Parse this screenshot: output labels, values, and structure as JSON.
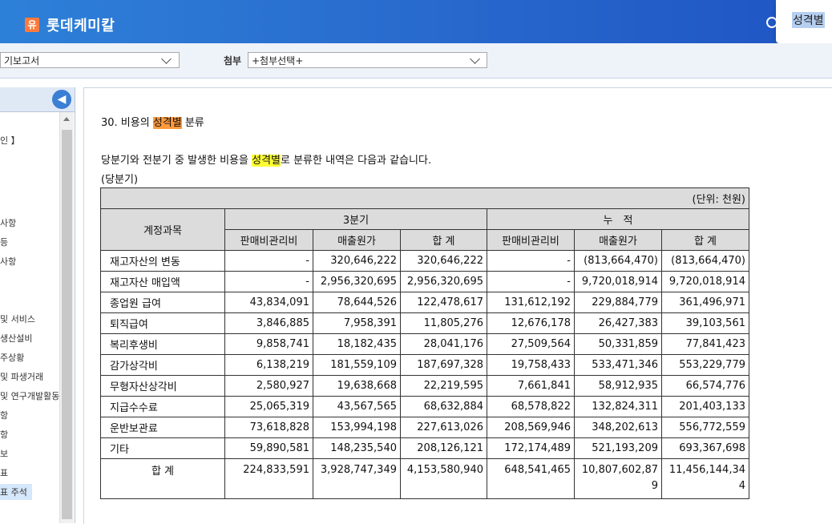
{
  "header": {
    "logo_glyph": "유",
    "company": "롯데케미칼",
    "search_text": "성격별"
  },
  "toolbar": {
    "report_select": "기보고서",
    "attach_label": "첨부",
    "attach_select": "+첨부선택+"
  },
  "sidebar": {
    "collapse_glyph": "◀",
    "items": [
      "인 】",
      "",
      "",
      "사항",
      "등",
      "사항",
      "",
      "",
      "및 서비스",
      "생산설비",
      "주상황",
      "및 파생거래",
      "및 연구개발활동",
      "항",
      "항",
      "보",
      "표",
      "표 주석"
    ]
  },
  "document": {
    "section_title_prefix": "30. 비용의 ",
    "section_title_highlight": "성격별",
    "section_title_suffix": " 분류",
    "intro_prefix": "당분기와 전분기 중 발생한 비용을 ",
    "intro_highlight": "성격별",
    "intro_suffix": "로 분류한 내역은 다음과 같습니다.",
    "period": "(당분기)"
  },
  "table": {
    "unit": "(단위: 천원)",
    "account_header": "계정과목",
    "group1": "3분기",
    "group2": "누　적",
    "sub_headers": [
      "판매비관리비",
      "매출원가",
      "합 계",
      "판매비관리비",
      "매출원가",
      "합 계"
    ],
    "rows": [
      {
        "label": "재고자산의 변동",
        "values": [
          "-",
          "320,646,222",
          "320,646,222",
          "-",
          "(813,664,470)",
          "(813,664,470)"
        ]
      },
      {
        "label": "재고자산 매입액",
        "values": [
          "-",
          "2,956,320,695",
          "2,956,320,695",
          "-",
          "9,720,018,914",
          "9,720,018,914"
        ]
      },
      {
        "label": "종업원 급여",
        "values": [
          "43,834,091",
          "78,644,526",
          "122,478,617",
          "131,612,192",
          "229,884,779",
          "361,496,971"
        ]
      },
      {
        "label": "퇴직급여",
        "values": [
          "3,846,885",
          "7,958,391",
          "11,805,276",
          "12,676,178",
          "26,427,383",
          "39,103,561"
        ]
      },
      {
        "label": "복리후생비",
        "values": [
          "9,858,741",
          "18,182,435",
          "28,041,176",
          "27,509,564",
          "50,331,859",
          "77,841,423"
        ]
      },
      {
        "label": "감가상각비",
        "values": [
          "6,138,219",
          "181,559,109",
          "187,697,328",
          "19,758,433",
          "533,471,346",
          "553,229,779"
        ]
      },
      {
        "label": "무형자산상각비",
        "values": [
          "2,580,927",
          "19,638,668",
          "22,219,595",
          "7,661,841",
          "58,912,935",
          "66,574,776"
        ]
      },
      {
        "label": "지급수수료",
        "values": [
          "25,065,319",
          "43,567,565",
          "68,632,884",
          "68,578,822",
          "132,824,311",
          "201,403,133"
        ]
      },
      {
        "label": "운반보관료",
        "values": [
          "73,618,828",
          "153,994,198",
          "227,613,026",
          "208,569,946",
          "348,202,613",
          "556,772,559"
        ]
      },
      {
        "label": "기타",
        "values": [
          "59,890,581",
          "148,235,540",
          "208,126,121",
          "172,174,489",
          "521,193,209",
          "693,367,698"
        ]
      }
    ],
    "total_label": "합 계",
    "total_values": [
      "224,833,591",
      "3,928,747,349",
      "4,153,580,940",
      "648,541,465",
      "10,807,602,87\n9",
      "11,456,144,34\n4"
    ]
  }
}
